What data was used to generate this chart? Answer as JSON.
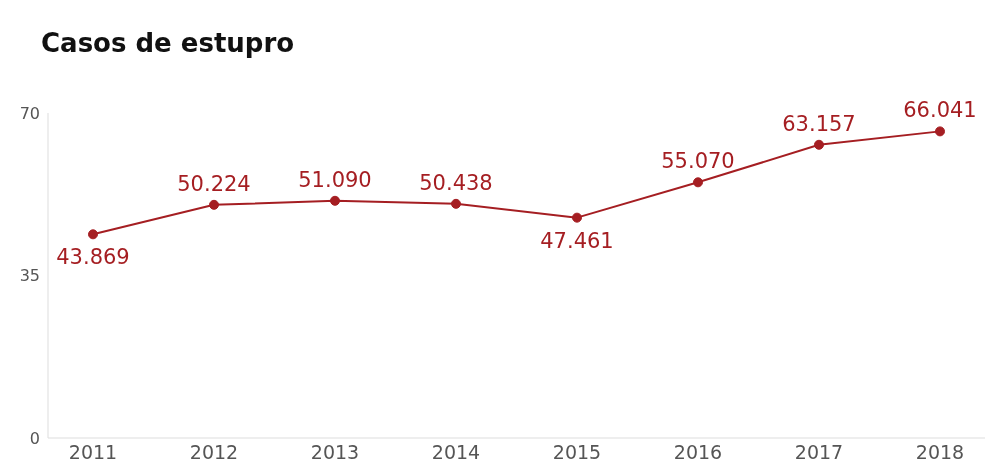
{
  "chart_data": {
    "type": "line",
    "title": "Casos de estupro",
    "categories": [
      "2011",
      "2012",
      "2013",
      "2014",
      "2015",
      "2016",
      "2017",
      "2018"
    ],
    "series": [
      {
        "color": "#a51e22",
        "values": [
          43.869,
          50.224,
          51.09,
          50.438,
          47.461,
          55.07,
          63.157,
          66.041
        ],
        "value_labels": [
          "43.869",
          "50.224",
          "51.090",
          "50.438",
          "47.461",
          "55.070",
          "63.157",
          "66.041"
        ]
      }
    ],
    "ylim": [
      0,
      70
    ],
    "yticks": [
      0,
      35,
      70
    ],
    "grid": false,
    "legend": false,
    "marker": "circle",
    "line_style": "solid"
  }
}
